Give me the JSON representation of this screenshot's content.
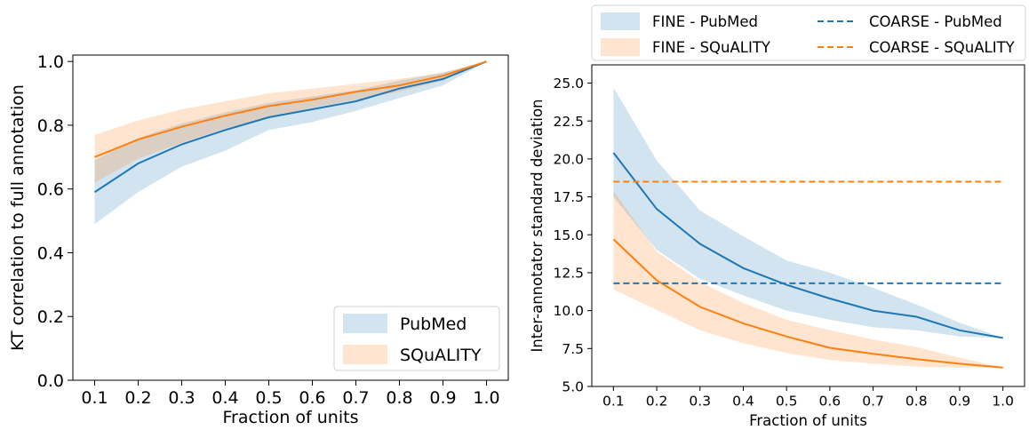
{
  "chart_data": [
    {
      "type": "line",
      "xlabel": "Fraction of units",
      "ylabel": "KT correlation to full annotation",
      "xlim": [
        0.05,
        1.05
      ],
      "ylim": [
        0.0,
        1.02
      ],
      "xticks": [
        "0.1",
        "0.2",
        "0.3",
        "0.4",
        "0.5",
        "0.6",
        "0.7",
        "0.8",
        "0.9",
        "1.0"
      ],
      "yticks": [
        "0.0",
        "0.2",
        "0.4",
        "0.6",
        "0.8",
        "1.0"
      ],
      "grid": false,
      "legend_position": "bottom-right",
      "x": [
        0.1,
        0.2,
        0.3,
        0.4,
        0.5,
        0.6,
        0.7,
        0.8,
        0.9,
        1.0
      ],
      "series": [
        {
          "name": "PubMed",
          "color": "#1f77b4",
          "values": [
            0.59,
            0.68,
            0.74,
            0.785,
            0.825,
            0.85,
            0.875,
            0.915,
            0.945,
            1.0
          ],
          "lower": [
            0.49,
            0.59,
            0.67,
            0.72,
            0.785,
            0.81,
            0.845,
            0.885,
            0.925,
            1.0
          ],
          "upper": [
            0.69,
            0.76,
            0.805,
            0.84,
            0.87,
            0.89,
            0.91,
            0.94,
            0.965,
            1.0
          ]
        },
        {
          "name": "SQuALITY",
          "color": "#ff7f0e",
          "values": [
            0.7,
            0.755,
            0.795,
            0.83,
            0.86,
            0.88,
            0.905,
            0.925,
            0.955,
            1.0
          ],
          "lower": [
            0.62,
            0.695,
            0.745,
            0.79,
            0.825,
            0.855,
            0.88,
            0.905,
            0.94,
            1.0
          ],
          "upper": [
            0.77,
            0.815,
            0.85,
            0.875,
            0.9,
            0.915,
            0.93,
            0.945,
            0.965,
            1.0
          ]
        }
      ]
    },
    {
      "type": "line",
      "xlabel": "Fraction of units",
      "ylabel": "Inter-annotator standard deviation",
      "xlim": [
        0.05,
        1.05
      ],
      "ylim": [
        5.0,
        26.2
      ],
      "xticks": [
        "0.1",
        "0.2",
        "0.3",
        "0.4",
        "0.5",
        "0.6",
        "0.7",
        "0.8",
        "0.9",
        "1.0"
      ],
      "yticks": [
        "5.0",
        "7.5",
        "10.0",
        "12.5",
        "15.0",
        "17.5",
        "20.0",
        "22.5",
        "25.0"
      ],
      "grid": false,
      "legend_position": "top (outside plot)",
      "x": [
        0.1,
        0.2,
        0.3,
        0.4,
        0.5,
        0.6,
        0.7,
        0.8,
        0.9,
        1.0
      ],
      "series": [
        {
          "name": "FINE - PubMed",
          "color": "#1f77b4",
          "values": [
            20.4,
            16.7,
            14.4,
            12.8,
            11.7,
            10.8,
            10.0,
            9.6,
            8.7,
            8.2
          ],
          "lower": [
            17.5,
            14.0,
            12.1,
            11.0,
            10.0,
            9.4,
            8.9,
            8.7,
            8.3,
            8.2
          ],
          "upper": [
            24.7,
            19.9,
            16.6,
            14.9,
            13.3,
            12.5,
            11.5,
            10.4,
            9.2,
            8.2
          ]
        },
        {
          "name": "FINE - SQuALITY",
          "color": "#ff7f0e",
          "values": [
            14.7,
            12.0,
            10.25,
            9.15,
            8.3,
            7.55,
            7.15,
            6.8,
            6.5,
            6.25
          ],
          "lower": [
            11.4,
            10.05,
            8.7,
            7.85,
            7.2,
            6.75,
            6.5,
            6.3,
            6.25,
            6.25
          ],
          "upper": [
            17.9,
            13.9,
            11.9,
            10.5,
            9.4,
            8.7,
            8.1,
            7.6,
            6.9,
            6.25
          ]
        },
        {
          "name": "COARSE - PubMed",
          "color": "#1f77b4",
          "dashed": true,
          "constant": 11.8
        },
        {
          "name": "COARSE - SQuALITY",
          "color": "#ff7f0e",
          "dashed": true,
          "constant": 18.5
        }
      ]
    }
  ]
}
